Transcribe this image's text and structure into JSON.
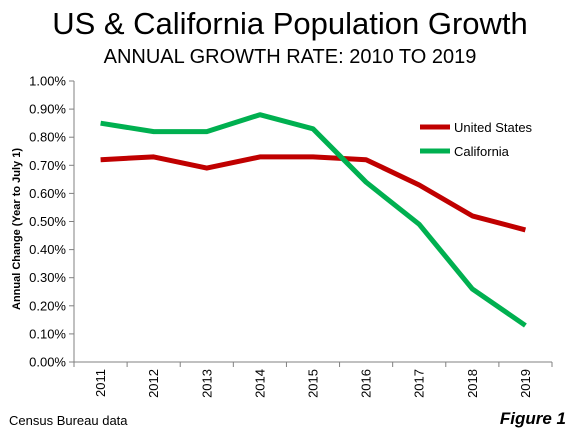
{
  "chart_data": {
    "type": "line",
    "title": "US & California Population Growth",
    "subtitle": "ANNUAL GROWTH RATE: 2010 TO 2019",
    "xlabel": "",
    "ylabel": "Annual Change (Year to July 1)",
    "categories": [
      "2011",
      "2012",
      "2013",
      "2014",
      "2015",
      "2016",
      "2017",
      "2018",
      "2019"
    ],
    "ylim": [
      0,
      1.0
    ],
    "yticks": [
      "0.00%",
      "0.10%",
      "0.20%",
      "0.30%",
      "0.40%",
      "0.50%",
      "0.60%",
      "0.70%",
      "0.80%",
      "0.90%",
      "1.00%"
    ],
    "grid": false,
    "legend_position": "top-right",
    "series": [
      {
        "name": "United States",
        "color": "#c00000",
        "values": [
          0.72,
          0.73,
          0.69,
          0.73,
          0.73,
          0.72,
          0.63,
          0.52,
          0.47
        ]
      },
      {
        "name": "California",
        "color": "#00b050",
        "values": [
          0.85,
          0.82,
          0.82,
          0.88,
          0.83,
          0.64,
          0.49,
          0.26,
          0.13
        ]
      }
    ]
  },
  "footer": {
    "source": "Census Bureau data",
    "figure": "Figure 1"
  }
}
